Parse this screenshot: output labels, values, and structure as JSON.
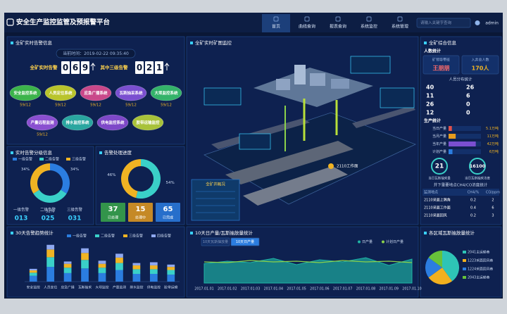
{
  "header": {
    "title": "安全生产监控监管及预报警平台",
    "nav": [
      "首页",
      "曲线查询",
      "报表查询",
      "系统监控",
      "系统管理"
    ],
    "search_placeholder": "请输入关键字查询",
    "user": "admin"
  },
  "alarm_panel": {
    "title": "全矿实时告警信息",
    "time": "当前时间：2019-02-22  09:35:40",
    "total_label": "全矿实时告警",
    "total_digits": [
      "0",
      "6",
      "9"
    ],
    "level3_label": "其中三级告警",
    "level3_digits": [
      "0",
      "2",
      "1"
    ],
    "systems": [
      {
        "name": "安全监控系统",
        "count": "59/12",
        "color": "#3cb44b"
      },
      {
        "name": "人员定位系统",
        "count": "59/12",
        "color": "#b9c42c"
      },
      {
        "name": "应急广播系统",
        "count": "59/12",
        "color": "#c9488a"
      },
      {
        "name": "瓦斯抽采系统",
        "count": "59/12",
        "color": "#7a4fd0"
      },
      {
        "name": "大坝监控系统",
        "count": "59/12",
        "color": "#34b36a"
      },
      {
        "name": "产量远程监测",
        "count": "59/12",
        "color": "#8a4fd0"
      },
      {
        "name": "排水监控系统",
        "color": "#2aa6a0"
      },
      {
        "name": "供电监控系统",
        "color": "#7e48c8"
      },
      {
        "name": "胶带运输监控",
        "color": "#a8c23a"
      }
    ]
  },
  "alarm_level": {
    "title": "实时告警分级信息",
    "legend": [
      "一级告警",
      "二级告警",
      "三级告警"
    ],
    "colors": [
      "#2b7de0",
      "#3ad0c8",
      "#f0b323"
    ],
    "values": [
      34,
      32,
      34
    ],
    "value_labels": [
      "34%",
      "32%",
      "34%"
    ],
    "counts": [
      "013",
      "025",
      "031"
    ]
  },
  "alarm_progress": {
    "title": "告警处理进度",
    "values": [
      54,
      46
    ],
    "value_labels": [
      "54%",
      "46%"
    ],
    "colors": [
      "#3ad0c8",
      "#f0b323"
    ],
    "boxes": [
      {
        "value": 37,
        "label": "已处理",
        "color": "#3aa84a"
      },
      {
        "value": 15,
        "label": "处理中",
        "color": "#e59b1e"
      },
      {
        "value": 65,
        "label": "已完成",
        "color": "#2b7de0"
      }
    ]
  },
  "map": {
    "title": "全矿实时矿图监控",
    "info_title": "全矿井概况",
    "work_face": "2110工作面"
  },
  "overview": {
    "title": "全矿综合信息",
    "people_title": "人数统计",
    "leader_label": "矿领导带班",
    "leader_name": "王朋朋",
    "total_label": "入井总人数",
    "total_value": "170人",
    "distribution_title": "人员分布统计",
    "distribution_left": [
      40,
      11,
      26,
      12
    ],
    "distribution_right": [
      26,
      6,
      0,
      0
    ],
    "production_title": "生产统计",
    "production": {
      "categories": [
        "当日产量",
        "当月产量",
        "当年产量",
        "计划产量"
      ],
      "values": [
        5.1,
        11,
        42,
        6
      ],
      "value_labels": [
        "5.1万吨",
        "11万吨",
        "42万吨",
        "6万吨"
      ],
      "colors": [
        "#e0504b",
        "#e59b1e",
        "#7a4fd0",
        "#2b7de0"
      ],
      "xlim": [
        0,
        50
      ]
    },
    "gauges": [
      {
        "value": "21",
        "label": "当日瓦斯抽采量"
      },
      {
        "value": "16100",
        "label": "当日瓦斯抽采浓度"
      }
    ],
    "table": {
      "title": "井下重要地点CH4/CO浓度统计",
      "header": [
        "监测地点",
        "CH4/%",
        "CO/ppm"
      ],
      "rows": [
        [
          "2110采面上隅角",
          "0.2",
          "2"
        ],
        [
          "2110采面工作面",
          "0.4",
          "6"
        ],
        [
          "2110采面回风",
          "0.2",
          "3"
        ]
      ]
    }
  },
  "trend": {
    "title": "30天告警趋势统计",
    "type": "bar",
    "stacked": true,
    "categories": [
      "安全监控",
      "人员定位",
      "应急广播",
      "瓦斯抽采",
      "大坝监控",
      "产量监测",
      "排水监控",
      "供电监控",
      "胶带运输"
    ],
    "ylim": [
      0,
      100
    ],
    "series": [
      {
        "name": "一级告警",
        "color": "#2b7de0",
        "values": [
          15,
          38,
          22,
          34,
          22,
          30,
          20,
          20,
          18
        ]
      },
      {
        "name": "二级告警",
        "color": "#3ad0c8",
        "values": [
          8,
          25,
          14,
          22,
          14,
          18,
          12,
          12,
          12
        ]
      },
      {
        "name": "三级告警",
        "color": "#f0b323",
        "values": [
          6,
          20,
          10,
          18,
          10,
          14,
          10,
          10,
          8
        ]
      },
      {
        "name": "四级告警",
        "color": "#8fa8f0",
        "values": [
          4,
          12,
          6,
          12,
          8,
          10,
          6,
          8,
          6
        ]
      }
    ]
  },
  "production": {
    "title": "10天日产量/瓦斯抽放量统计",
    "type": "area",
    "tabs": [
      "10天瓦斯抽放量",
      "10天日产量"
    ],
    "active_tab": 1,
    "categories": [
      "2017.01.01",
      "2017.01.02",
      "2017.01.03",
      "2017.01.04",
      "2017.01.05",
      "2017.01.06",
      "2017.01.07",
      "2017.01.08",
      "2017.01.09",
      "2017.01.10"
    ],
    "ylim": [
      0,
      100
    ],
    "series": [
      {
        "name": "日产量",
        "color": "#1fb5a5",
        "values": [
          55,
          62,
          58,
          70,
          52,
          66,
          60,
          72,
          50,
          68
        ]
      },
      {
        "name": "计划日产量",
        "color": "#8bd14a",
        "values": [
          60,
          58,
          64,
          60,
          62,
          58,
          64,
          60,
          62,
          58
        ]
      }
    ]
  },
  "pie": {
    "title": "各区域瓦斯抽放量统计",
    "type": "pie",
    "labels": [
      "2041主运输巷",
      "1223采面回风巷",
      "1224采面回风巷",
      "2043主运输巷"
    ],
    "values": [
      40,
      25,
      20,
      15
    ],
    "colors": [
      "#2ec4b6",
      "#f2b01e",
      "#2b7de0",
      "#67c23a"
    ]
  }
}
